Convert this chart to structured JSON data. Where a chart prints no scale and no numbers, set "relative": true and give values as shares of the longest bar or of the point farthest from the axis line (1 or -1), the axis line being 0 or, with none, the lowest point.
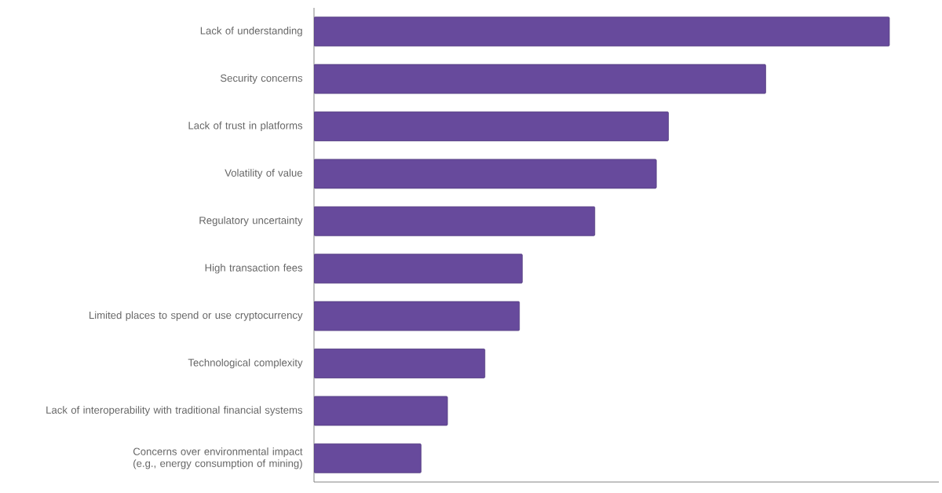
{
  "chart_data": {
    "type": "bar",
    "orientation": "horizontal",
    "relative": true,
    "color": "#674a9c",
    "categories": [
      "Lack of understanding",
      "Security concerns",
      "Lack of trust in platforms",
      "Volatility of value",
      "Regulatory uncertainty",
      "High transaction fees",
      "Limited places to spend or use cryptocurrency",
      "Technological complexity",
      "Lack of interoperability with traditional financial systems",
      "Concerns over environmental impact (e.g., energy consumption of mining)"
    ],
    "values": [
      1,
      0.785,
      0.616,
      0.595,
      0.488,
      0.362,
      0.357,
      0.297,
      0.232,
      0.186
    ]
  }
}
